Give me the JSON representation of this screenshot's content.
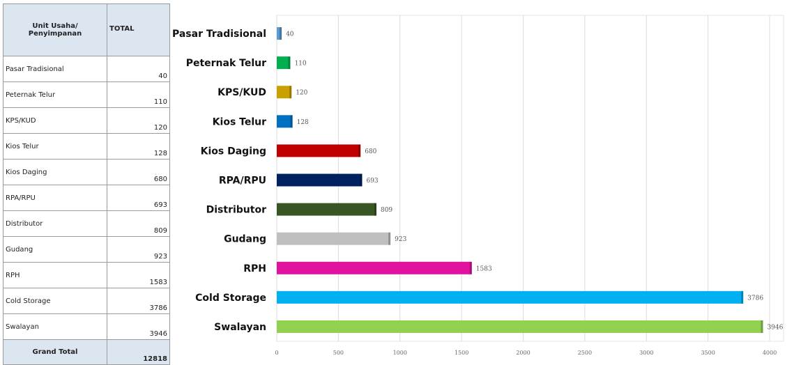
{
  "table": {
    "header": [
      "Unit Usaha/ Penyimpanan",
      "TOTAL"
    ],
    "rows": [
      [
        "Pasar Tradisional",
        40
      ],
      [
        "Peternak Telur",
        110
      ],
      [
        "KPS/KUD",
        120
      ],
      [
        "Kios Telur",
        128
      ],
      [
        "Kios Daging",
        680
      ],
      [
        "RPA/RPU",
        693
      ],
      [
        "Distributor",
        809
      ],
      [
        "Gudang",
        923
      ],
      [
        "RPH",
        1583
      ],
      [
        "Cold Storage",
        3786
      ],
      [
        "Swalayan",
        3946
      ]
    ],
    "footer": [
      "Grand Total",
      12818
    ]
  },
  "chart_data": {
    "type": "bar",
    "orientation": "horizontal",
    "categories": [
      "Pasar Tradisional",
      "Peternak Telur",
      "KPS/KUD",
      "Kios Telur",
      "Kios Daging",
      "RPA/RPU",
      "Distributor",
      "Gudang",
      "RPH",
      "Cold Storage",
      "Swalayan"
    ],
    "values": [
      40,
      110,
      120,
      128,
      680,
      693,
      809,
      923,
      1583,
      3786,
      3946
    ],
    "colors": [
      "#5b9bd5",
      "#00b050",
      "#c9a000",
      "#0070c0",
      "#c00000",
      "#002060",
      "#375623",
      "#bfbfbf",
      "#e0119d",
      "#00b0f0",
      "#92d050"
    ],
    "xlim": [
      0,
      4000
    ],
    "xticks": [
      0,
      500,
      1000,
      1500,
      2000,
      2500,
      3000,
      3500,
      4000
    ],
    "grid": true
  }
}
